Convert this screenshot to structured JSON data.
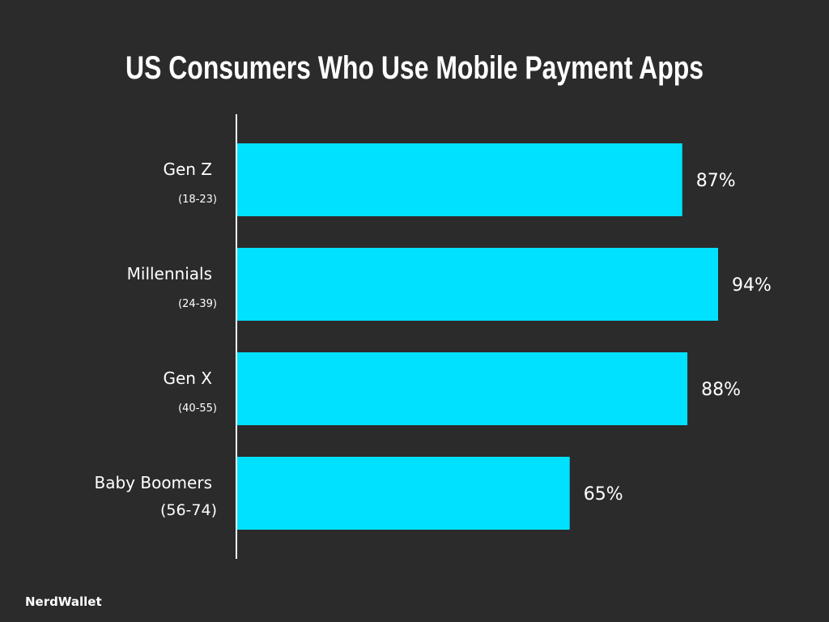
{
  "chart_data": {
    "type": "bar",
    "orientation": "horizontal",
    "title": "US Consumers Who Use Mobile Payment Apps",
    "categories": [
      "Gen Z",
      "Millennials",
      "Gen X",
      "Baby Boomers"
    ],
    "category_subtitles": [
      "(18-23)",
      "(24-39)",
      "(40-55)",
      "(56-74)"
    ],
    "values": [
      87,
      94,
      88,
      65
    ],
    "value_labels": [
      "87%",
      "94%",
      "88%",
      "65%"
    ],
    "xlim": [
      0,
      94
    ],
    "grid": false,
    "legend": "none"
  },
  "brand": "NerdWallet",
  "colors": {
    "background": "#2b2b2b",
    "bar": "#00e1ff",
    "text": "#ffffff",
    "axis": "#ffffff"
  }
}
